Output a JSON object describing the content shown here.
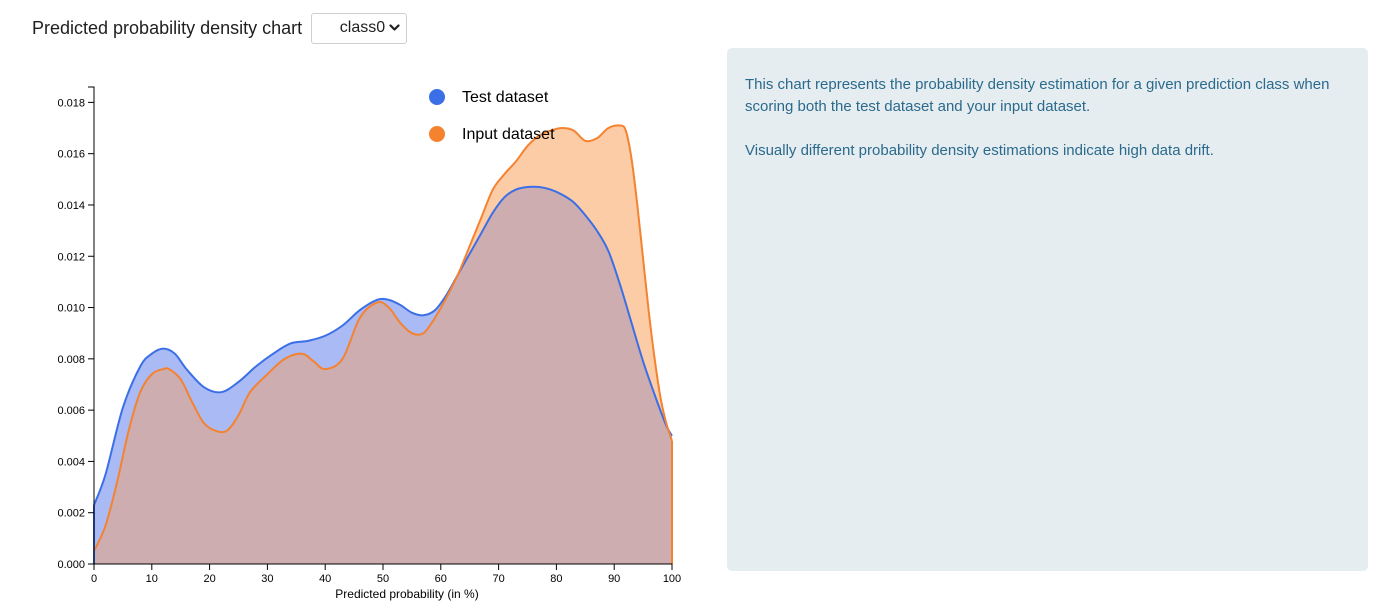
{
  "header": {
    "title": "Predicted probability density chart",
    "selected_class": "class0"
  },
  "info": {
    "paragraphs": [
      "This chart represents the probability density estimation for a given prediction class when scoring both the test dataset and your input dataset.",
      "Visually different probability density estimations indicate high data drift."
    ]
  },
  "colors": {
    "test_line": "#3b6fe6",
    "test_fill": "#a9baf5",
    "input_line": "#f5822f",
    "input_fill": "#fbcca6",
    "overlap_fill": "#ceadb1",
    "panel_bg": "#e5edf0",
    "panel_text": "#2b6a8c"
  },
  "icons": {
    "select_chevron": "chevron-down-icon",
    "legend_marker": "circle"
  },
  "chart_data": {
    "type": "area",
    "title": "",
    "xlabel": "Predicted probability (in %)",
    "ylabel": "",
    "xlim": [
      0,
      100
    ],
    "ylim": [
      0,
      0.0186
    ],
    "x_ticks": [
      0,
      10,
      20,
      30,
      40,
      50,
      60,
      70,
      80,
      90,
      100
    ],
    "y_ticks": [
      "0.000",
      "0.002",
      "0.004",
      "0.006",
      "0.008",
      "0.010",
      "0.012",
      "0.014",
      "0.016",
      "0.018"
    ],
    "grid": false,
    "legend_position": "top-right",
    "series": [
      {
        "name": "Test dataset",
        "x": [
          0,
          2,
          5,
          8,
          10,
          12,
          14,
          16,
          19,
          22,
          25,
          28,
          31,
          34,
          37,
          40,
          43,
          46,
          49,
          51,
          53,
          55,
          57,
          59,
          61,
          63,
          65,
          67,
          69,
          71,
          73,
          75,
          77,
          79,
          81,
          83,
          85,
          87,
          89,
          91,
          93,
          95,
          97,
          99,
          100
        ],
        "y": [
          0.0023,
          0.0035,
          0.0061,
          0.0077,
          0.0082,
          0.0084,
          0.0082,
          0.0076,
          0.0069,
          0.0067,
          0.0071,
          0.0077,
          0.0082,
          0.0086,
          0.0087,
          0.0089,
          0.0093,
          0.0099,
          0.0103,
          0.0103,
          0.0101,
          0.0098,
          0.0097,
          0.0099,
          0.0105,
          0.0113,
          0.0121,
          0.0129,
          0.0137,
          0.0143,
          0.0146,
          0.0147,
          0.0147,
          0.0146,
          0.0144,
          0.0141,
          0.0136,
          0.013,
          0.0122,
          0.0109,
          0.0094,
          0.0079,
          0.0066,
          0.0054,
          0.005
        ]
      },
      {
        "name": "Input dataset",
        "x": [
          0,
          2,
          4,
          6,
          8,
          10,
          12,
          13,
          15,
          17,
          19,
          21,
          23,
          25,
          27,
          30,
          33,
          36,
          38,
          40,
          43,
          46,
          49,
          51,
          53,
          55,
          57,
          59,
          61,
          63,
          65,
          67,
          69,
          71,
          73,
          75,
          77,
          79,
          81,
          83,
          85,
          87,
          89,
          91,
          92,
          93,
          94,
          95,
          96,
          97,
          98,
          99,
          100
        ],
        "y": [
          0.0005,
          0.0015,
          0.0032,
          0.0052,
          0.0067,
          0.0074,
          0.0076,
          0.0076,
          0.0072,
          0.0063,
          0.0055,
          0.0052,
          0.0052,
          0.0058,
          0.0067,
          0.0074,
          0.008,
          0.0082,
          0.0079,
          0.0076,
          0.008,
          0.0096,
          0.0102,
          0.01,
          0.0094,
          0.009,
          0.009,
          0.0096,
          0.0104,
          0.0113,
          0.0124,
          0.0135,
          0.0146,
          0.0152,
          0.0157,
          0.0163,
          0.0167,
          0.0169,
          0.017,
          0.0169,
          0.0165,
          0.0166,
          0.017,
          0.0171,
          0.0169,
          0.0158,
          0.014,
          0.0119,
          0.0098,
          0.008,
          0.0065,
          0.0055,
          0.0048
        ]
      }
    ]
  }
}
